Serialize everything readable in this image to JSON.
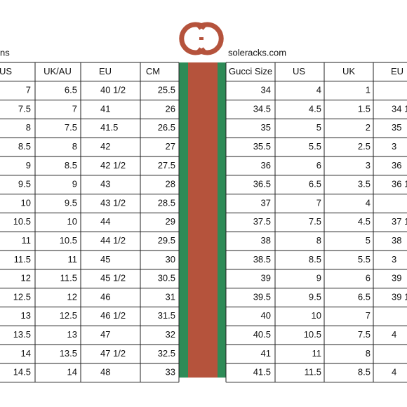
{
  "header": {
    "left_label": "ns",
    "site": "soleracks.com"
  },
  "table": {
    "columns": [
      "US",
      "UK/AU",
      "EU",
      "CM",
      "Gucci Size",
      "US",
      "UK",
      "EU"
    ],
    "rows": [
      [
        7,
        6.5,
        "40 1/2",
        25.5,
        34,
        4,
        1,
        null
      ],
      [
        7.5,
        7,
        "41",
        26,
        34.5,
        4.5,
        1.5,
        "34 1"
      ],
      [
        8,
        7.5,
        "41.5",
        26.5,
        35,
        5,
        2,
        "35"
      ],
      [
        8.5,
        8,
        "42",
        27,
        35.5,
        5.5,
        2.5,
        "3"
      ],
      [
        9,
        8.5,
        "42 1/2",
        27.5,
        36,
        6,
        3,
        "36"
      ],
      [
        9.5,
        9,
        "43",
        28,
        36.5,
        6.5,
        3.5,
        "36 1"
      ],
      [
        10,
        9.5,
        "43 1/2",
        28.5,
        37,
        7,
        4,
        null
      ],
      [
        10.5,
        10,
        "44",
        29,
        37.5,
        7.5,
        4.5,
        "37 1"
      ],
      [
        11,
        10.5,
        "44 1/2",
        29.5,
        38,
        8,
        5,
        "38"
      ],
      [
        11.5,
        11,
        "45",
        30,
        38.5,
        8.5,
        5.5,
        "3"
      ],
      [
        12,
        11.5,
        "45 1/2",
        30.5,
        39,
        9,
        6,
        "39"
      ],
      [
        12.5,
        12,
        "46",
        31,
        39.5,
        9.5,
        6.5,
        "39 1"
      ],
      [
        13,
        12.5,
        "46 1/2",
        31.5,
        40,
        10,
        7,
        null
      ],
      [
        13.5,
        13,
        "47",
        32,
        40.5,
        10.5,
        7.5,
        "4"
      ],
      [
        14,
        13.5,
        "47 1/2",
        32.5,
        41,
        11,
        8,
        null
      ],
      [
        14.5,
        14,
        "48",
        33,
        41.5,
        11.5,
        8.5,
        "4"
      ]
    ]
  }
}
